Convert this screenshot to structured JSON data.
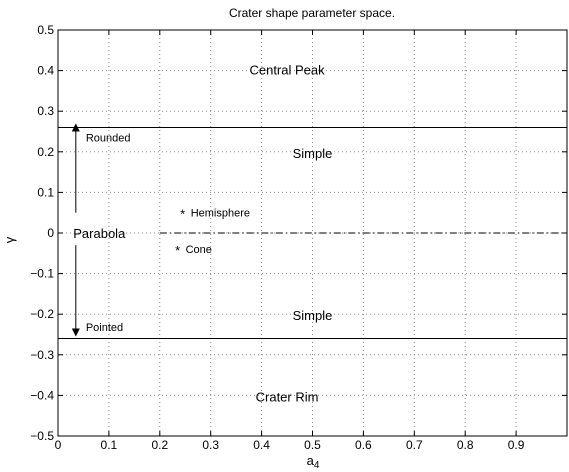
{
  "chart_data": {
    "type": "scatter",
    "title": "Crater shape parameter space.",
    "xlabel_main": "a",
    "xlabel_sub": "4",
    "ylabel": "γ",
    "xlim": [
      0,
      1
    ],
    "ylim": [
      -0.5,
      0.5
    ],
    "xticks": [
      0,
      0.1,
      0.2,
      0.3,
      0.4,
      0.5,
      0.6,
      0.7,
      0.8,
      0.9
    ],
    "xtick_labels": [
      "0",
      "0.1",
      "0.2",
      "0.3",
      "0.4",
      "0.5",
      "0.6",
      "0.7",
      "0.8",
      "0.9"
    ],
    "yticks": [
      -0.5,
      -0.4,
      -0.3,
      -0.2,
      -0.1,
      0,
      0.1,
      0.2,
      0.3,
      0.4,
      0.5
    ],
    "ytick_labels": [
      "−0.5",
      "−0.4",
      "−0.3",
      "−0.2",
      "−0.1",
      "0",
      "0.1",
      "0.2",
      "0.3",
      "0.4",
      "0.5"
    ],
    "grid": true,
    "boundaries": [
      0.26,
      -0.26
    ],
    "dashdot_line": {
      "y": 0,
      "x_start": 0.2,
      "x_end": 1
    },
    "points": [
      {
        "name": "Hemisphere",
        "x": 0.245,
        "y": 0.05
      },
      {
        "name": "Cone",
        "x": 0.235,
        "y": -0.04
      }
    ],
    "regions": [
      {
        "label": "Central Peak",
        "x": 0.45,
        "y": 0.4
      },
      {
        "label": "Simple",
        "x": 0.5,
        "y": 0.195
      },
      {
        "label": "Simple",
        "x": 0.5,
        "y": -0.205
      },
      {
        "label": "Crater Rim",
        "x": 0.45,
        "y": -0.405
      }
    ],
    "parabola_label": {
      "label": "Parabola",
      "x": 0.03,
      "y": 0
    },
    "arrows": [
      {
        "label": "Rounded",
        "x": 0.035,
        "y_from": 0.05,
        "y_to": 0.26,
        "label_y": 0.235
      },
      {
        "label": "Pointed",
        "x": 0.035,
        "y_from": -0.03,
        "y_to": -0.245,
        "label_y": -0.232
      }
    ]
  }
}
